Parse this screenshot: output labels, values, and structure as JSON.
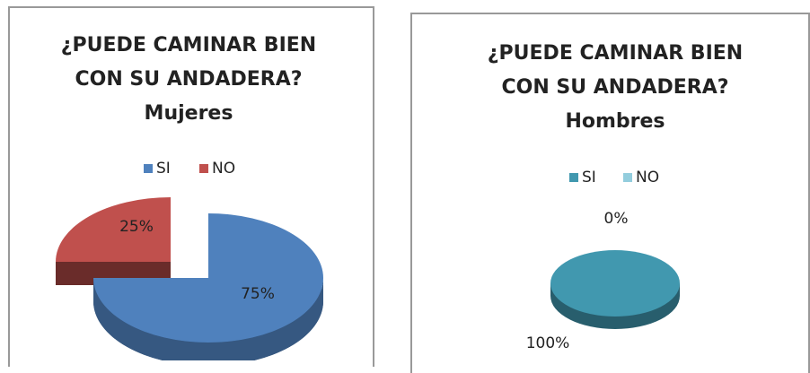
{
  "chart_data": [
    {
      "type": "pie",
      "title": "¿PUEDE CAMINAR BIEN CON SU ANDADERA? Mujeres",
      "categories": [
        "SI",
        "NO"
      ],
      "values": [
        75,
        25
      ],
      "value_labels": [
        "75%",
        "25%"
      ],
      "colors": [
        "#4f81bd",
        "#c0504d"
      ],
      "legend": "top"
    },
    {
      "type": "pie",
      "title": "¿PUEDE CAMINAR BIEN CON SU ANDADERA? Hombres",
      "categories": [
        "SI",
        "NO"
      ],
      "values": [
        100,
        0
      ],
      "value_labels": [
        "100%",
        "0%"
      ],
      "colors": [
        "#4198af",
        "#93cddd"
      ],
      "legend": "top"
    }
  ]
}
